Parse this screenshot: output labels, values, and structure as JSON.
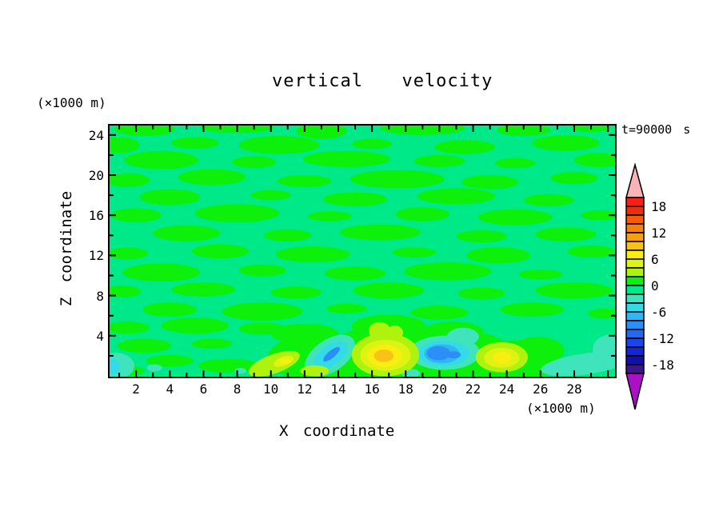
{
  "chart_data": {
    "type": "filled-contour",
    "title": "vertical  velocity",
    "time_label": "t=90000 s",
    "xlabel": "X coordinate",
    "ylabel": "Z coordinate",
    "x_units_label": "(×1000 m)",
    "y_units_label": "(×1000 m)",
    "x_range": [
      0.4,
      30.5
    ],
    "y_range": [
      0,
      25
    ],
    "x_tick_labels": [
      "2",
      "4",
      "6",
      "8",
      "10",
      "12",
      "14",
      "16",
      "18",
      "20",
      "22",
      "24",
      "26",
      "28"
    ],
    "x_tick_values": [
      2,
      4,
      6,
      8,
      10,
      12,
      14,
      16,
      18,
      20,
      22,
      24,
      26,
      28
    ],
    "y_tick_labels": [
      "4",
      "8",
      "12",
      "16",
      "20",
      "24"
    ],
    "y_tick_values": [
      4,
      8,
      12,
      16,
      20,
      24
    ],
    "grid": false,
    "colorbar": {
      "position": "right",
      "interval": 2,
      "box_values_top_to_bottom": [
        "18..20",
        "16..18",
        "14..16",
        "12..14",
        "10..12",
        "8..10",
        "6..8",
        "4..6",
        "2..4",
        "0..2",
        "-2..0",
        "-4..-2",
        "-6..-4",
        "-8..-6",
        "-10..-8",
        "-12..-10",
        "-14..-12",
        "-16..-14",
        "-18..-16",
        "-20..-18"
      ],
      "colors_top_to_bottom": [
        "#f91f14",
        "#ef2d0a",
        "#f65c08",
        "#f8800e",
        "#f9a012",
        "#fbc216",
        "#f8ee12",
        "#ddf311",
        "#aef20d",
        "#0cf00c",
        "#00e988",
        "#3fe4bc",
        "#33dbe8",
        "#31b5f5",
        "#2b8ff5",
        "#2368f2",
        "#1a45ea",
        "#1426d4",
        "#140fa6",
        "#3f128f"
      ],
      "over_arrow_color": "#f8b2ba",
      "under_arrow_color": "#ab10c6",
      "labels": [
        "18",
        "12",
        "6",
        "0",
        "-6",
        "-12",
        "-18"
      ],
      "label_boundary_index": [
        1,
        4,
        7,
        10,
        13,
        16,
        19
      ]
    },
    "field": {
      "background_level": "-2..0",
      "background_color_index": 10,
      "patch_color_index": 9,
      "patches": [
        [
          2.5,
          24.6,
          1.8,
          0.7
        ],
        [
          8,
          24.8,
          2.2,
          0.6
        ],
        [
          13,
          24.4,
          1.5,
          0.8
        ],
        [
          19,
          24.7,
          2.5,
          0.7
        ],
        [
          25,
          24.5,
          1.6,
          0.6
        ],
        [
          29,
          24.8,
          1.2,
          0.5
        ],
        [
          1,
          23,
          1.2,
          0.8
        ],
        [
          5.5,
          23.2,
          1.4,
          0.6
        ],
        [
          10.5,
          23,
          2.4,
          0.9
        ],
        [
          16,
          23.1,
          1.2,
          0.5
        ],
        [
          21.5,
          22.8,
          1.8,
          0.7
        ],
        [
          27.5,
          23.2,
          2.0,
          0.8
        ],
        [
          3.5,
          21.5,
          2.2,
          0.9
        ],
        [
          9,
          21.3,
          1.3,
          0.6
        ],
        [
          14.5,
          21.6,
          2.6,
          0.8
        ],
        [
          20,
          21.4,
          1.5,
          0.6
        ],
        [
          24.5,
          21.2,
          1.2,
          0.5
        ],
        [
          29.5,
          21.5,
          1.5,
          0.7
        ],
        [
          1.5,
          19.5,
          1.3,
          0.7
        ],
        [
          6.5,
          19.8,
          2.0,
          0.8
        ],
        [
          12,
          19.4,
          1.6,
          0.6
        ],
        [
          17.5,
          19.6,
          2.8,
          0.9
        ],
        [
          23,
          19.3,
          1.7,
          0.7
        ],
        [
          28,
          19.7,
          1.4,
          0.6
        ],
        [
          4,
          17.8,
          1.8,
          0.8
        ],
        [
          10,
          18,
          1.2,
          0.5
        ],
        [
          15,
          17.6,
          1.9,
          0.7
        ],
        [
          21,
          17.9,
          2.3,
          0.8
        ],
        [
          26.5,
          17.5,
          1.5,
          0.6
        ],
        [
          2,
          16,
          1.5,
          0.7
        ],
        [
          8,
          16.2,
          2.5,
          0.9
        ],
        [
          13.5,
          15.9,
          1.3,
          0.5
        ],
        [
          19,
          16.1,
          1.6,
          0.7
        ],
        [
          24.5,
          15.8,
          2.2,
          0.8
        ],
        [
          29.5,
          16,
          1.1,
          0.5
        ],
        [
          5,
          14.2,
          2.0,
          0.8
        ],
        [
          11,
          14,
          1.4,
          0.6
        ],
        [
          16.5,
          14.3,
          2.4,
          0.8
        ],
        [
          22.5,
          13.9,
          1.5,
          0.6
        ],
        [
          27.5,
          14.1,
          1.8,
          0.7
        ],
        [
          1.5,
          12.2,
          1.2,
          0.6
        ],
        [
          7,
          12.4,
          1.7,
          0.7
        ],
        [
          12.5,
          12.1,
          2.2,
          0.8
        ],
        [
          18.5,
          12.3,
          1.3,
          0.5
        ],
        [
          23.5,
          12,
          1.9,
          0.8
        ],
        [
          29,
          12.4,
          1.4,
          0.6
        ],
        [
          3.5,
          10.3,
          2.3,
          0.9
        ],
        [
          9.5,
          10.5,
          1.4,
          0.6
        ],
        [
          15,
          10.2,
          1.8,
          0.7
        ],
        [
          20.5,
          10.4,
          2.6,
          0.9
        ],
        [
          26,
          10.1,
          1.3,
          0.5
        ],
        [
          1.2,
          8.4,
          1.1,
          0.6
        ],
        [
          6,
          8.6,
          1.9,
          0.7
        ],
        [
          11.5,
          8.3,
          1.5,
          0.6
        ],
        [
          17,
          8.5,
          2.1,
          0.8
        ],
        [
          22.5,
          8.2,
          1.4,
          0.6
        ],
        [
          28,
          8.5,
          2.3,
          0.8
        ],
        [
          4,
          6.6,
          1.6,
          0.7
        ],
        [
          9.5,
          6.4,
          2.4,
          0.9
        ],
        [
          14.5,
          6.7,
          1.2,
          0.5
        ],
        [
          20,
          6.3,
          1.7,
          0.7
        ],
        [
          25.5,
          6.6,
          1.9,
          0.7
        ],
        [
          29.8,
          6.2,
          1.0,
          0.5
        ],
        [
          1.5,
          4.8,
          1.3,
          0.6
        ],
        [
          5.5,
          5,
          2.0,
          0.8
        ],
        [
          9.5,
          4.7,
          1.4,
          0.6
        ],
        [
          2.5,
          3,
          1.6,
          0.7
        ],
        [
          6.5,
          3.2,
          1.2,
          0.5
        ],
        [
          4,
          1.5,
          1.4,
          0.6
        ],
        [
          7.5,
          1,
          1.8,
          0.7
        ],
        [
          1.5,
          0.5,
          1.0,
          0.5
        ]
      ],
      "green_zone": [
        [
          13,
          1.8,
          3.2,
          2.4
        ],
        [
          17,
          2.2,
          3.6,
          2.9
        ],
        [
          21,
          2.0,
          3.4,
          2.6
        ],
        [
          24.5,
          1.5,
          2.6,
          2.0
        ],
        [
          15,
          0.8,
          4.0,
          1.4
        ],
        [
          19,
          0.7,
          4.0,
          1.2
        ],
        [
          23,
          0.8,
          3.0,
          1.2
        ],
        [
          12,
          4.2,
          2.0,
          1.0
        ],
        [
          17,
          4.9,
          2.2,
          1.2
        ],
        [
          20.8,
          4.4,
          1.8,
          1.0
        ],
        [
          25.8,
          2.5,
          1.6,
          1.4
        ]
      ],
      "features": [
        {
          "c": 11,
          "e": [
            0.8,
            1.0,
            1.1,
            1.3,
            0
          ]
        },
        {
          "c": 12,
          "e": [
            0.55,
            0.9,
            0.5,
            0.8,
            0
          ]
        },
        {
          "c": 11,
          "e": [
            3.1,
            0.8,
            0.45,
            0.35,
            0
          ]
        },
        {
          "c": 11,
          "e": [
            8.2,
            0.5,
            0.35,
            0.3,
            0
          ]
        },
        {
          "c": 11,
          "e": [
            13.5,
            2.0,
            1.7,
            1.6,
            -35
          ]
        },
        {
          "c": 12,
          "e": [
            13.55,
            2.05,
            1.15,
            1.0,
            -35
          ]
        },
        {
          "c": 14,
          "e": [
            13.6,
            2.15,
            0.62,
            0.36,
            -40
          ]
        },
        {
          "c": 11,
          "e": [
            20.3,
            2.3,
            2.1,
            1.7,
            0
          ]
        },
        {
          "c": 11,
          "e": [
            21.4,
            3.9,
            0.95,
            0.9,
            0
          ]
        },
        {
          "c": 12,
          "e": [
            20.25,
            2.25,
            1.5,
            1.25,
            0
          ]
        },
        {
          "c": 13,
          "e": [
            20.15,
            2.2,
            1.05,
            0.95,
            0
          ]
        },
        {
          "c": 14,
          "e": [
            19.95,
            2.25,
            0.7,
            0.7,
            0
          ]
        },
        {
          "c": 14,
          "e": [
            20.85,
            2.1,
            0.42,
            0.36,
            0
          ]
        },
        {
          "c": 11,
          "e": [
            18.3,
            0.25,
            0.55,
            0.45,
            0
          ]
        },
        {
          "c": 11,
          "e": [
            28.7,
            1.2,
            2.7,
            1.05,
            -8
          ]
        },
        {
          "c": 11,
          "e": [
            30.1,
            2.6,
            1.0,
            1.5,
            0
          ]
        },
        {
          "c": 8,
          "e": [
            12.6,
            0.5,
            0.85,
            0.55,
            0
          ]
        },
        {
          "c": 8,
          "e": [
            10.2,
            1.2,
            1.6,
            0.95,
            -20
          ]
        },
        {
          "c": 7,
          "e": [
            10.75,
            1.45,
            0.62,
            0.46,
            -20
          ]
        },
        {
          "c": 6,
          "e": [
            10.85,
            1.5,
            0.34,
            0.3,
            0
          ]
        },
        {
          "c": 8,
          "e": [
            16.8,
            2.1,
            2.0,
            2.15,
            0
          ]
        },
        {
          "c": 8,
          "e": [
            16.45,
            4.5,
            0.65,
            0.85,
            0
          ]
        },
        {
          "c": 8,
          "e": [
            17.35,
            4.3,
            0.5,
            0.7,
            0
          ]
        },
        {
          "c": 7,
          "e": [
            16.8,
            2.05,
            1.5,
            1.55,
            0
          ]
        },
        {
          "c": 6,
          "e": [
            16.75,
            2.0,
            1.05,
            1.1,
            0
          ]
        },
        {
          "c": 5,
          "e": [
            16.7,
            2.0,
            0.58,
            0.62,
            0
          ]
        },
        {
          "c": 8,
          "e": [
            23.7,
            1.85,
            1.55,
            1.5,
            0
          ]
        },
        {
          "c": 7,
          "e": [
            23.7,
            1.8,
            1.05,
            1.0,
            0
          ]
        },
        {
          "c": 6,
          "e": [
            23.72,
            1.8,
            0.55,
            0.6,
            0
          ]
        }
      ]
    }
  }
}
